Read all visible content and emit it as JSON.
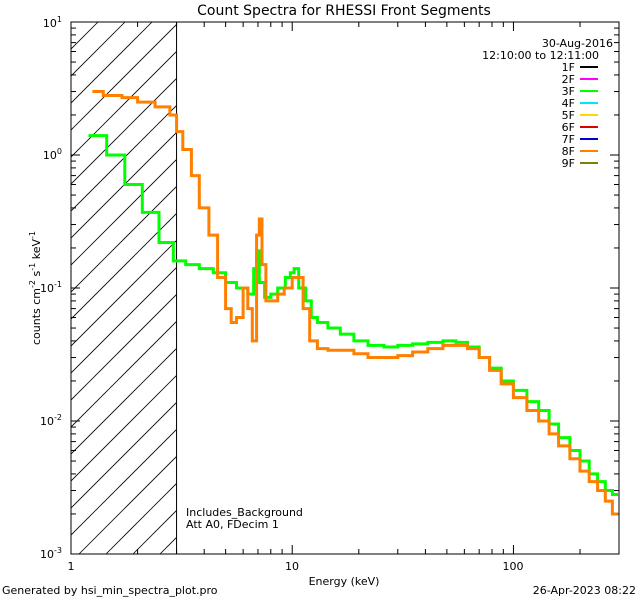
{
  "chart_data": {
    "type": "line",
    "title": "Count Spectra for RHESSI Front Segments",
    "xlabel": "Energy (keV)",
    "ylabel_parts": {
      "pre": "counts cm",
      "e1": "-2",
      "mid": " s",
      "e2": "-1",
      "post": " keV",
      "e3": "-1"
    },
    "xscale": "log",
    "yscale": "log",
    "xlim": [
      1,
      300
    ],
    "ylim": [
      0.001,
      10
    ],
    "x_ticks": [
      {
        "value": 1,
        "label": "1"
      },
      {
        "value": 10,
        "label": "10"
      },
      {
        "value": 100,
        "label": "100"
      }
    ],
    "y_ticks": [
      {
        "value": 0.001,
        "base": "10",
        "exp": "-3"
      },
      {
        "value": 0.01,
        "base": "10",
        "exp": "-2"
      },
      {
        "value": 0.1,
        "base": "10",
        "exp": "-1"
      },
      {
        "value": 1,
        "base": "10",
        "exp": "0"
      },
      {
        "value": 10,
        "base": "10",
        "exp": "1"
      }
    ],
    "excluded_region": [
      1,
      3
    ],
    "date": "30-Aug-2016",
    "time_range": "12:10:00 to 12:11:00",
    "legend": [
      {
        "name": "1F",
        "color": "#000000"
      },
      {
        "name": "2F",
        "color": "#ff00ff"
      },
      {
        "name": "3F",
        "color": "#00ff00"
      },
      {
        "name": "4F",
        "color": "#00e5ff"
      },
      {
        "name": "5F",
        "color": "#ffd700"
      },
      {
        "name": "6F",
        "color": "#dd0000"
      },
      {
        "name": "7F",
        "color": "#0000cc"
      },
      {
        "name": "8F",
        "color": "#ff7f00"
      },
      {
        "name": "9F",
        "color": "#808000"
      }
    ],
    "annotations": [
      "Includes_Background",
      "Att A0, FDecim 1"
    ],
    "series": [
      {
        "name": "3F",
        "color": "#00ff00",
        "points": [
          [
            1.2,
            1.4
          ],
          [
            1.45,
            1.0
          ],
          [
            1.75,
            0.6
          ],
          [
            2.1,
            0.37
          ],
          [
            2.5,
            0.22
          ],
          [
            2.9,
            0.16
          ],
          [
            3.3,
            0.15
          ],
          [
            3.8,
            0.14
          ],
          [
            4.4,
            0.13
          ],
          [
            5.0,
            0.11
          ],
          [
            5.6,
            0.1
          ],
          [
            6.3,
            0.09
          ],
          [
            6.7,
            0.14
          ],
          [
            6.9,
            0.19
          ],
          [
            7.1,
            0.11
          ],
          [
            7.5,
            0.085
          ],
          [
            8.0,
            0.09
          ],
          [
            8.6,
            0.1
          ],
          [
            9.3,
            0.12
          ],
          [
            9.8,
            0.13
          ],
          [
            10.2,
            0.14
          ],
          [
            10.7,
            0.1
          ],
          [
            11.5,
            0.08
          ],
          [
            12.2,
            0.06
          ],
          [
            13.0,
            0.055
          ],
          [
            14.5,
            0.05
          ],
          [
            16.5,
            0.045
          ],
          [
            19,
            0.04
          ],
          [
            22,
            0.037
          ],
          [
            26,
            0.036
          ],
          [
            30,
            0.037
          ],
          [
            35,
            0.038
          ],
          [
            41,
            0.039
          ],
          [
            48,
            0.04
          ],
          [
            55,
            0.039
          ],
          [
            62,
            0.036
          ],
          [
            70,
            0.03
          ],
          [
            78,
            0.025
          ],
          [
            88,
            0.02
          ],
          [
            100,
            0.017
          ],
          [
            115,
            0.014
          ],
          [
            130,
            0.012
          ],
          [
            145,
            0.0095
          ],
          [
            160,
            0.0075
          ],
          [
            180,
            0.006
          ],
          [
            200,
            0.005
          ],
          [
            220,
            0.004
          ],
          [
            240,
            0.0035
          ],
          [
            260,
            0.003
          ],
          [
            280,
            0.0028
          ]
        ]
      },
      {
        "name": "8F",
        "color": "#ff7f00",
        "points": [
          [
            1.25,
            3.0
          ],
          [
            1.4,
            2.8
          ],
          [
            1.7,
            2.7
          ],
          [
            2.0,
            2.5
          ],
          [
            2.4,
            2.3
          ],
          [
            2.8,
            2.0
          ],
          [
            3.0,
            1.5
          ],
          [
            3.2,
            1.1
          ],
          [
            3.5,
            0.7
          ],
          [
            3.8,
            0.4
          ],
          [
            4.2,
            0.25
          ],
          [
            4.6,
            0.12
          ],
          [
            5.0,
            0.07
          ],
          [
            5.3,
            0.055
          ],
          [
            5.6,
            0.06
          ],
          [
            6.0,
            0.1
          ],
          [
            6.3,
            0.07
          ],
          [
            6.6,
            0.04
          ],
          [
            6.9,
            0.25
          ],
          [
            7.1,
            0.33
          ],
          [
            7.3,
            0.15
          ],
          [
            7.6,
            0.08
          ],
          [
            8.0,
            0.08
          ],
          [
            8.6,
            0.09
          ],
          [
            9.2,
            0.1
          ],
          [
            10.0,
            0.12
          ],
          [
            10.5,
            0.12
          ],
          [
            11.2,
            0.07
          ],
          [
            12.0,
            0.04
          ],
          [
            13,
            0.035
          ],
          [
            14.5,
            0.034
          ],
          [
            16.5,
            0.034
          ],
          [
            19,
            0.032
          ],
          [
            22,
            0.03
          ],
          [
            26,
            0.03
          ],
          [
            30,
            0.031
          ],
          [
            35,
            0.033
          ],
          [
            41,
            0.035
          ],
          [
            48,
            0.037
          ],
          [
            55,
            0.037
          ],
          [
            62,
            0.035
          ],
          [
            70,
            0.03
          ],
          [
            78,
            0.024
          ],
          [
            88,
            0.019
          ],
          [
            100,
            0.015
          ],
          [
            115,
            0.012
          ],
          [
            130,
            0.01
          ],
          [
            145,
            0.008
          ],
          [
            160,
            0.0065
          ],
          [
            180,
            0.0052
          ],
          [
            200,
            0.0042
          ],
          [
            220,
            0.0035
          ],
          [
            240,
            0.003
          ],
          [
            260,
            0.0025
          ],
          [
            280,
            0.002
          ]
        ]
      }
    ]
  },
  "footer": {
    "generated": "Generated by hsi_min_spectra_plot.pro",
    "timestamp": "26-Apr-2023 08:22"
  }
}
